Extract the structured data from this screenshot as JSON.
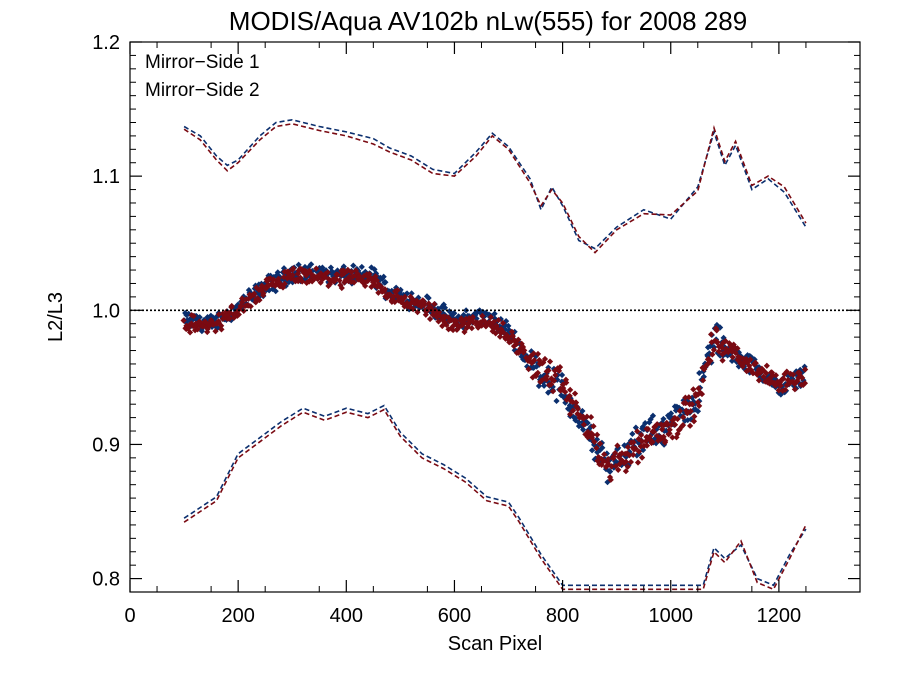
{
  "chart_data": {
    "type": "scatter",
    "title": "MODIS/Aqua AV102b nLw(555) for 2008 289",
    "xlabel": "Scan Pixel",
    "ylabel": "L2/L3",
    "xlim": [
      0,
      1350
    ],
    "ylim": [
      0.79,
      1.2
    ],
    "xticks": [
      0,
      200,
      400,
      600,
      800,
      1000,
      1200
    ],
    "yticks": [
      0.8,
      0.9,
      1.0,
      1.1,
      1.2
    ],
    "xtick_labels": [
      "0",
      "200",
      "400",
      "600",
      "800",
      "1000",
      "1200"
    ],
    "ytick_labels": [
      "0.8",
      "0.9",
      "1.0",
      "1.1",
      "1.2"
    ],
    "reference_line": 1.0,
    "legend_position": "top-left",
    "colors": {
      "ms1": "#0b2f6e",
      "ms2": "#7a0a12"
    },
    "series": [
      {
        "name": "Mirror−Side 1",
        "mean": {
          "x": [
            100,
            150,
            200,
            250,
            300,
            350,
            400,
            450,
            480,
            550,
            600,
            650,
            700,
            740,
            800,
            850,
            880,
            900,
            950,
            1000,
            1050,
            1080,
            1100,
            1150,
            1200,
            1250
          ],
          "y": [
            0.992,
            0.99,
            1.002,
            1.018,
            1.028,
            1.027,
            1.026,
            1.026,
            1.014,
            1.004,
            0.992,
            0.996,
            0.985,
            0.96,
            0.94,
            0.905,
            0.885,
            0.89,
            0.905,
            0.915,
            0.935,
            0.982,
            0.97,
            0.96,
            0.942,
            0.953
          ]
        },
        "upper": {
          "x": [
            100,
            130,
            160,
            180,
            200,
            240,
            270,
            300,
            350,
            400,
            450,
            480,
            520,
            560,
            600,
            640,
            670,
            700,
            740,
            760,
            780,
            800,
            830,
            860,
            900,
            950,
            1000,
            1050,
            1080,
            1100,
            1120,
            1150,
            1180,
            1210,
            1250
          ],
          "y": [
            1.137,
            1.13,
            1.115,
            1.108,
            1.112,
            1.13,
            1.14,
            1.142,
            1.137,
            1.133,
            1.128,
            1.121,
            1.115,
            1.105,
            1.102,
            1.118,
            1.132,
            1.122,
            1.098,
            1.075,
            1.092,
            1.078,
            1.052,
            1.046,
            1.062,
            1.075,
            1.068,
            1.092,
            1.133,
            1.108,
            1.123,
            1.09,
            1.098,
            1.088,
            1.062
          ]
        },
        "lower": {
          "x": [
            100,
            130,
            160,
            200,
            240,
            280,
            320,
            360,
            400,
            440,
            470,
            500,
            540,
            580,
            620,
            660,
            700,
            720,
            760,
            800,
            1060,
            1080,
            1100,
            1130,
            1160,
            1190,
            1220,
            1250
          ],
          "y": [
            0.845,
            0.853,
            0.861,
            0.893,
            0.905,
            0.917,
            0.927,
            0.921,
            0.927,
            0.923,
            0.929,
            0.909,
            0.893,
            0.885,
            0.875,
            0.861,
            0.857,
            0.845,
            0.818,
            0.795,
            0.795,
            0.823,
            0.815,
            0.825,
            0.8,
            0.795,
            0.818,
            0.837
          ]
        }
      },
      {
        "name": "Mirror−Side 2",
        "mean": {
          "x": [
            100,
            150,
            200,
            250,
            300,
            350,
            400,
            450,
            480,
            550,
            600,
            650,
            700,
            740,
            800,
            850,
            880,
            900,
            950,
            1000,
            1050,
            1080,
            1100,
            1150,
            1200,
            1250
          ],
          "y": [
            0.99,
            0.988,
            1.0,
            1.016,
            1.025,
            1.024,
            1.023,
            1.022,
            1.011,
            1.001,
            0.989,
            0.993,
            0.982,
            0.962,
            0.944,
            0.91,
            0.882,
            0.887,
            0.903,
            0.913,
            0.933,
            0.978,
            0.973,
            0.958,
            0.945,
            0.951
          ]
        },
        "upper": {
          "x": [
            100,
            130,
            160,
            180,
            200,
            240,
            270,
            300,
            350,
            400,
            450,
            480,
            520,
            560,
            600,
            640,
            670,
            700,
            740,
            760,
            780,
            800,
            830,
            860,
            900,
            950,
            1000,
            1050,
            1080,
            1100,
            1120,
            1150,
            1180,
            1210,
            1250
          ],
          "y": [
            1.135,
            1.127,
            1.112,
            1.104,
            1.11,
            1.127,
            1.137,
            1.139,
            1.134,
            1.13,
            1.124,
            1.118,
            1.112,
            1.102,
            1.1,
            1.115,
            1.13,
            1.12,
            1.095,
            1.078,
            1.09,
            1.08,
            1.055,
            1.043,
            1.06,
            1.072,
            1.071,
            1.089,
            1.136,
            1.111,
            1.126,
            1.093,
            1.1,
            1.092,
            1.065
          ]
        },
        "lower": {
          "x": [
            100,
            130,
            160,
            200,
            240,
            280,
            320,
            360,
            400,
            440,
            470,
            500,
            540,
            580,
            620,
            660,
            700,
            720,
            760,
            800,
            1060,
            1080,
            1100,
            1130,
            1160,
            1190,
            1220,
            1250
          ],
          "y": [
            0.842,
            0.85,
            0.858,
            0.89,
            0.902,
            0.914,
            0.924,
            0.918,
            0.924,
            0.92,
            0.926,
            0.906,
            0.89,
            0.882,
            0.872,
            0.858,
            0.854,
            0.842,
            0.815,
            0.792,
            0.792,
            0.82,
            0.812,
            0.828,
            0.797,
            0.792,
            0.815,
            0.84
          ]
        }
      }
    ]
  }
}
